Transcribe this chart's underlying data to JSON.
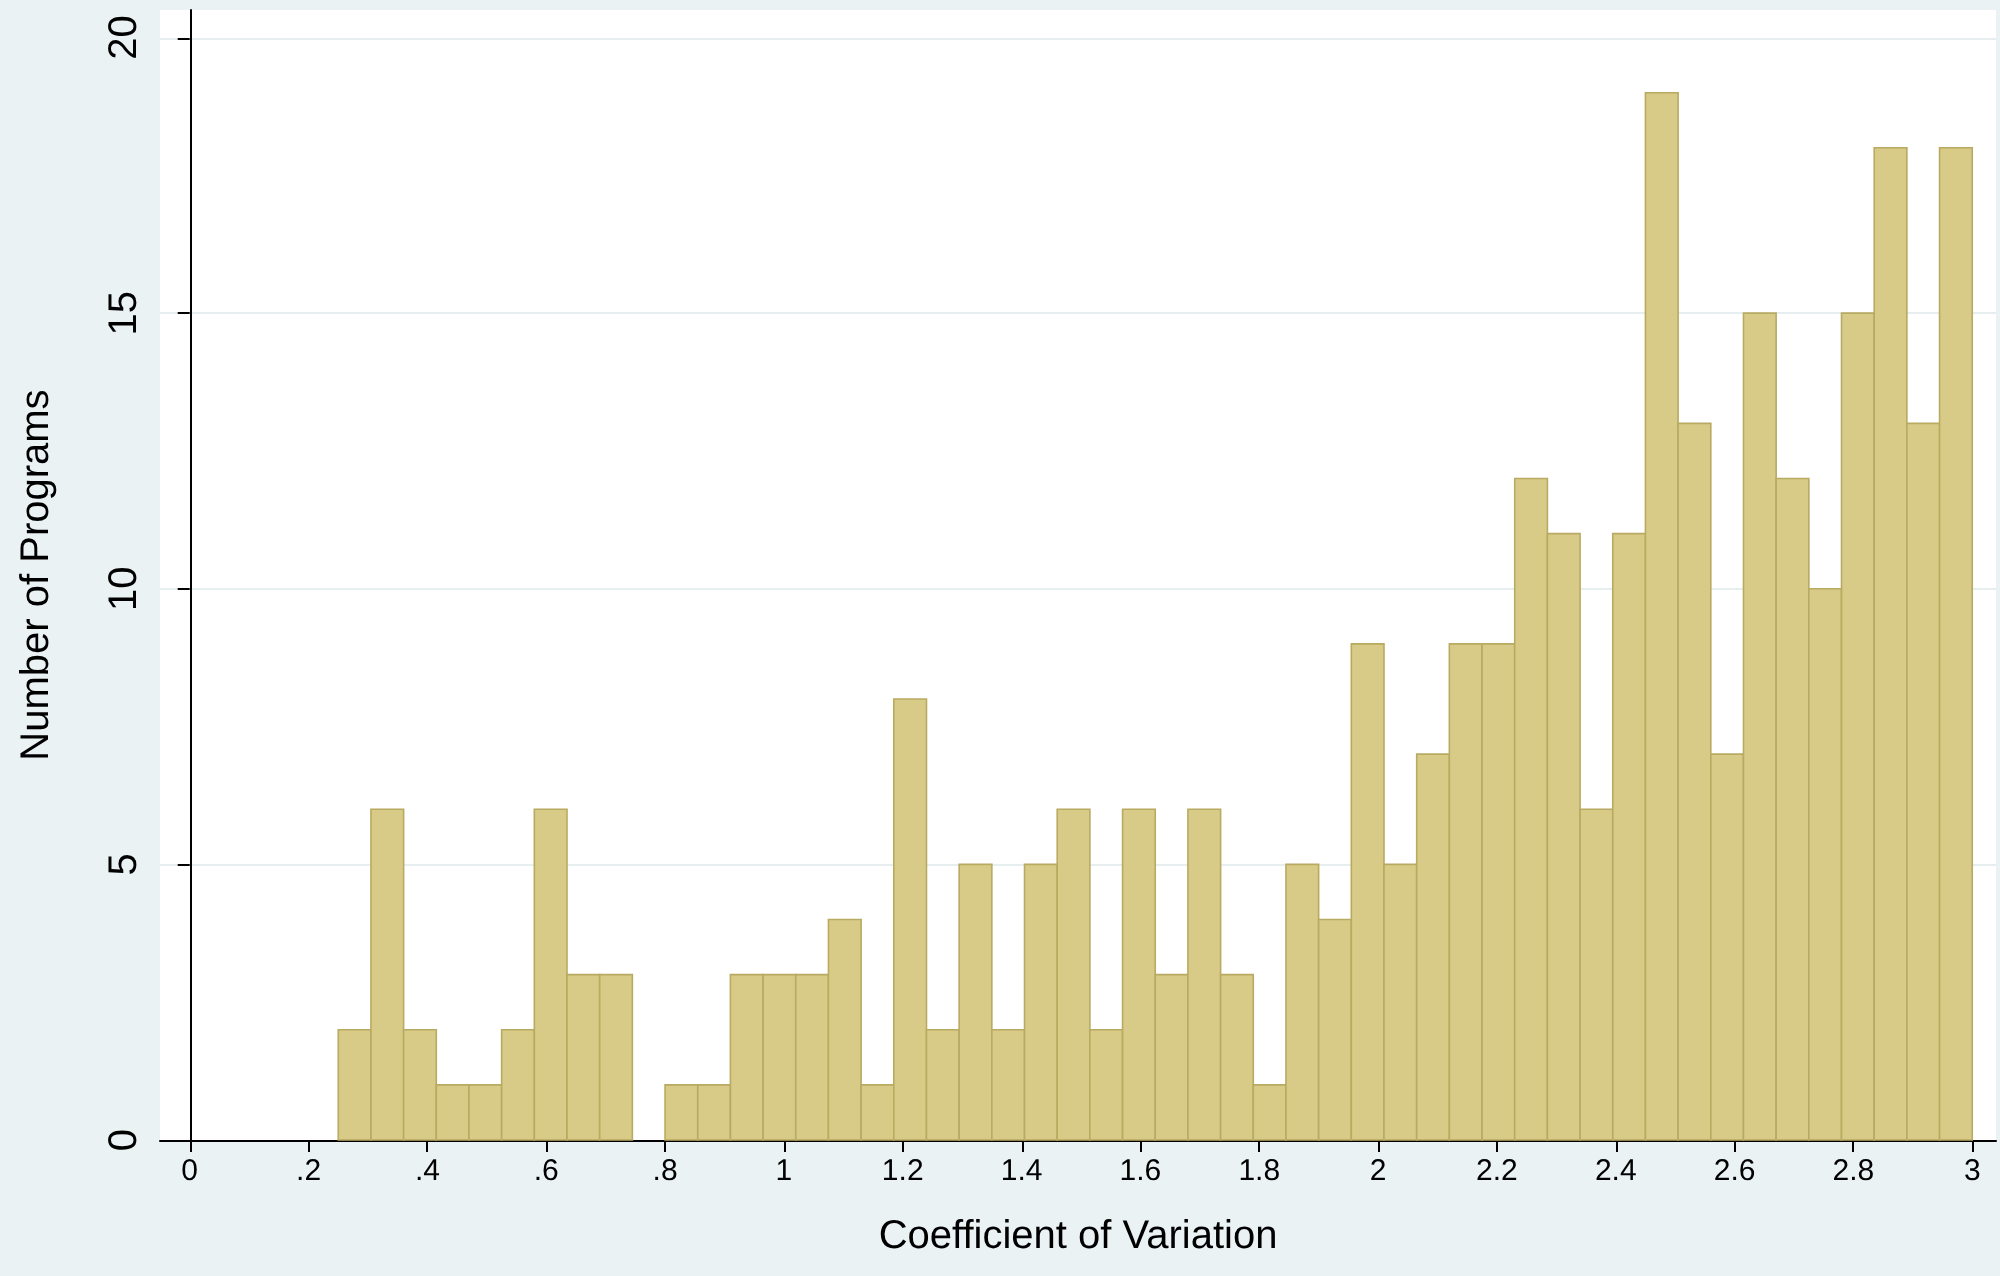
{
  "chart_data": {
    "type": "histogram",
    "xlabel": "Coefficient of Variation",
    "ylabel": "Number of Programs",
    "color": "#d7cb87",
    "bins": [
      0.25,
      0.305,
      0.36,
      0.415,
      0.47,
      0.525,
      0.58,
      0.635,
      0.69,
      0.745,
      0.8,
      0.855,
      0.91,
      0.965,
      1.02,
      1.075,
      1.13,
      1.185,
      1.24,
      1.295,
      1.35,
      1.405,
      1.46,
      1.515,
      1.57,
      1.625,
      1.68,
      1.735,
      1.79,
      1.845,
      1.9,
      1.955,
      2.01,
      2.065,
      2.12,
      2.175,
      2.23,
      2.285,
      2.34,
      2.395,
      2.45,
      2.505,
      2.56,
      2.615,
      2.67,
      2.725,
      2.78,
      2.835,
      2.89,
      2.945,
      3.0
    ],
    "values": [
      2,
      6,
      2,
      1,
      1,
      2,
      6,
      3,
      3,
      0,
      1,
      1,
      3,
      3,
      3,
      4,
      1,
      8,
      2,
      5,
      2,
      5,
      6,
      2,
      6,
      3,
      6,
      3,
      1,
      5,
      4,
      9,
      5,
      7,
      9,
      9,
      12,
      11,
      6,
      11,
      19,
      13,
      7,
      15,
      12,
      10,
      15,
      18,
      13,
      18
    ],
    "xlim": [
      -0.05,
      3.04
    ],
    "xticks": [
      0,
      {
        "value": 0.2,
        "label": ".2"
      },
      {
        "value": 0.4,
        "label": ".4"
      },
      {
        "value": 0.6,
        "label": ".6"
      },
      {
        "value": 0.8,
        "label": ".8"
      },
      1,
      {
        "value": 1.2,
        "label": "1.2"
      },
      {
        "value": 1.4,
        "label": "1.4"
      },
      {
        "value": 1.6,
        "label": "1.6"
      },
      {
        "value": 1.8,
        "label": "1.8"
      },
      2,
      {
        "value": 2.2,
        "label": "2.2"
      },
      {
        "value": 2.4,
        "label": "2.4"
      },
      {
        "value": 2.6,
        "label": "2.6"
      },
      {
        "value": 2.8,
        "label": "2.8"
      },
      3
    ],
    "ylim": [
      0,
      20.5
    ],
    "yticks": [
      0,
      5,
      10,
      15,
      20
    ],
    "grid": "y"
  }
}
